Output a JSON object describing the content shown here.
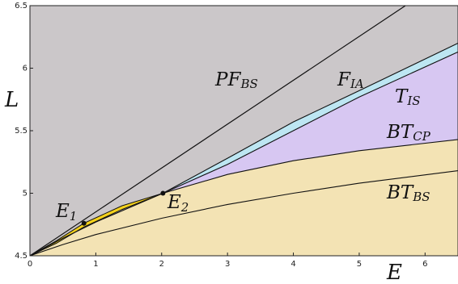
{
  "chart_data": {
    "type": "area",
    "xlabel": "E",
    "ylabel": "L",
    "xlim": [
      0,
      6.5
    ],
    "ylim": [
      4.5,
      6.5
    ],
    "xticks": [
      "0",
      "1",
      "2",
      "3",
      "4",
      "5",
      "6"
    ],
    "yticks": [
      "4.5",
      "5",
      "5.5",
      "6",
      "6.5"
    ],
    "grid": false,
    "colors": {
      "background_region": "#cbc7c9",
      "yellow_region": "#f3e3b4",
      "purple_region": "#d7c7f2",
      "cyan_band": "#bde6f2",
      "small_yellow_region": "#f5d21c",
      "line": "#111111"
    },
    "regions": [
      {
        "name": "PF",
        "sub": "BS"
      },
      {
        "name": "F",
        "sub": "IA"
      },
      {
        "name": "T",
        "sub": "IS"
      },
      {
        "name": "BT",
        "sub": "CP"
      },
      {
        "name": "BT",
        "sub": "BS"
      }
    ],
    "points": [
      {
        "name": "E",
        "sub": "1",
        "x": 0.82,
        "y": 4.76
      },
      {
        "name": "E",
        "sub": "2",
        "x": 2.02,
        "y": 5.0
      }
    ],
    "curves": {
      "PF_BS": [
        [
          0,
          4.5
        ],
        [
          6.5,
          6.78
        ]
      ],
      "F_IA_upper": [
        [
          2.02,
          5.0
        ],
        [
          3.0,
          5.28
        ],
        [
          4.0,
          5.57
        ],
        [
          5.0,
          5.82
        ],
        [
          6.5,
          6.2
        ]
      ],
      "F_IA_lower": [
        [
          2.02,
          5.0
        ],
        [
          3.0,
          5.23
        ],
        [
          4.0,
          5.5
        ],
        [
          5.0,
          5.77
        ],
        [
          6.5,
          6.13
        ]
      ],
      "BT_CP": [
        [
          0,
          4.5
        ],
        [
          0.5,
          4.64
        ],
        [
          1.0,
          4.77
        ],
        [
          2.02,
          5.0
        ],
        [
          3.0,
          5.15
        ],
        [
          4.0,
          5.26
        ],
        [
          5.0,
          5.34
        ],
        [
          6.5,
          5.43
        ]
      ],
      "BT_BS": [
        [
          0,
          4.5
        ],
        [
          0.5,
          4.59
        ],
        [
          1.0,
          4.67
        ],
        [
          2.0,
          4.8
        ],
        [
          3.0,
          4.91
        ],
        [
          4.0,
          5.0
        ],
        [
          5.0,
          5.08
        ],
        [
          6.5,
          5.18
        ]
      ],
      "E1_E2_upper": [
        [
          0,
          4.5
        ],
        [
          0.4,
          4.62
        ],
        [
          0.82,
          4.76
        ],
        [
          1.4,
          4.9
        ],
        [
          2.02,
          5.0
        ]
      ],
      "E1_E2_lower": [
        [
          0,
          4.5
        ],
        [
          0.4,
          4.6
        ],
        [
          0.82,
          4.73
        ],
        [
          1.4,
          4.87
        ],
        [
          2.02,
          5.0
        ]
      ]
    }
  }
}
